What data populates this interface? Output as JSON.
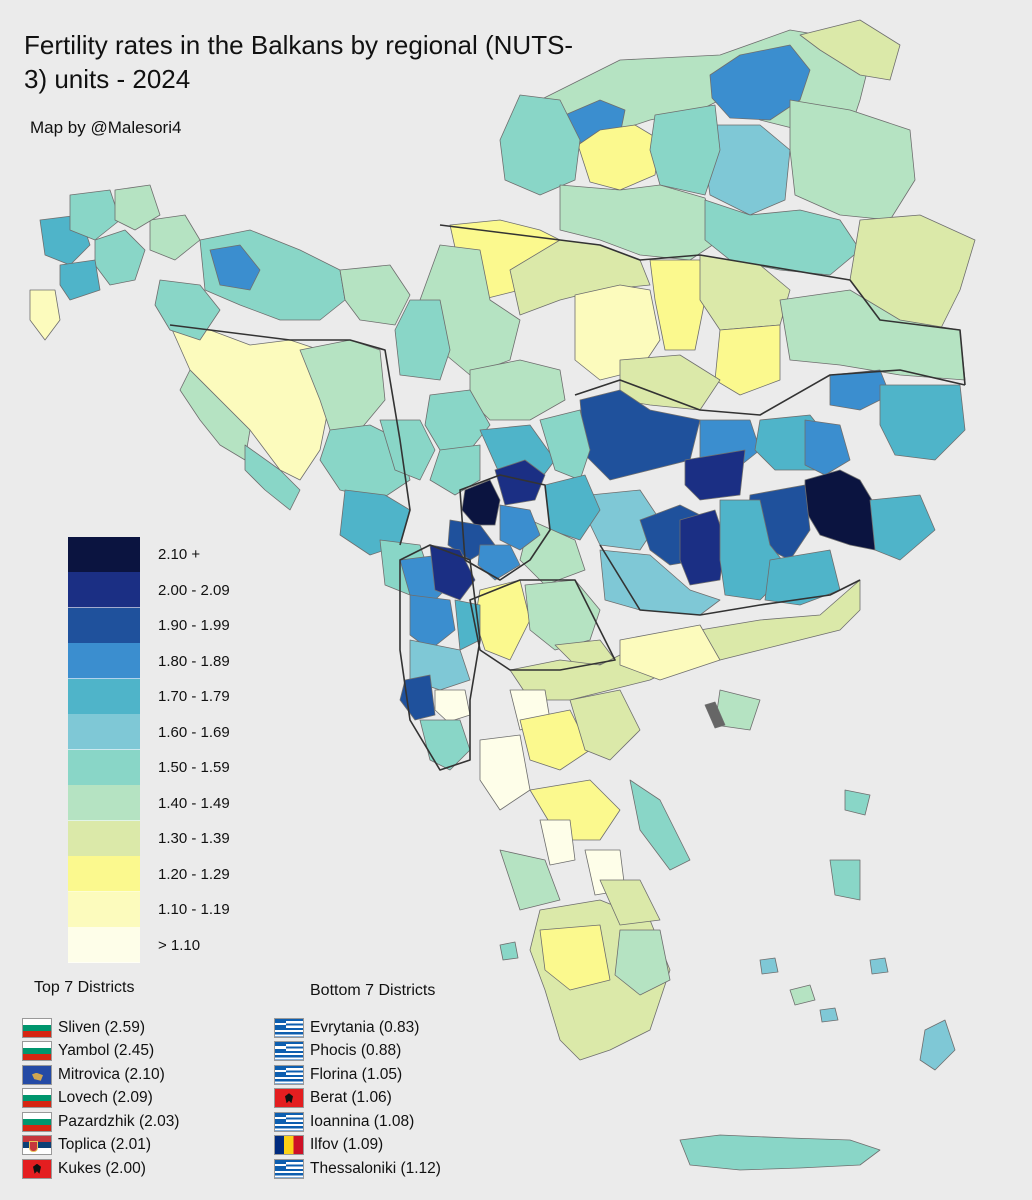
{
  "title": "Fertility rates in the Balkans  by regional (NUTS-3) units - 2024",
  "credit": "Map by @Malesori4",
  "legend": [
    {
      "label": "2.10 +",
      "color": "#0b1440"
    },
    {
      "label": "2.00 - 2.09",
      "color": "#1b2f84"
    },
    {
      "label": "1.90 - 1.99",
      "color": "#1f519c"
    },
    {
      "label": "1.80 - 1.89",
      "color": "#3b8ecf"
    },
    {
      "label": "1.70 - 1.79",
      "color": "#4fb4c9"
    },
    {
      "label": "1.60 - 1.69",
      "color": "#7fc8d6"
    },
    {
      "label": "1.50 - 1.59",
      "color": "#89d6c7"
    },
    {
      "label": "1.40 - 1.49",
      "color": "#b5e3c2"
    },
    {
      "label": "1.30 - 1.39",
      "color": "#dbe9a9"
    },
    {
      "label": "1.20 - 1.29",
      "color": "#fbf98e"
    },
    {
      "label": "1.10 - 1.19",
      "color": "#fcfbbd"
    },
    {
      "label": "> 1.10",
      "color": "#fefee9"
    }
  ],
  "top": {
    "heading": "Top 7 Districts",
    "items": [
      {
        "label": "Sliven (2.59)",
        "flag": "bg"
      },
      {
        "label": "Yambol (2.45)",
        "flag": "bg"
      },
      {
        "label": "Mitrovica (2.10)",
        "flag": "xk"
      },
      {
        "label": "Lovech (2.09)",
        "flag": "bg"
      },
      {
        "label": "Pazardzhik (2.03)",
        "flag": "bg"
      },
      {
        "label": "Toplica (2.01)",
        "flag": "rs"
      },
      {
        "label": "Kukes (2.00)",
        "flag": "al"
      }
    ]
  },
  "bottom": {
    "heading": "Bottom 7 Districts",
    "items": [
      {
        "label": "Evrytania (0.83)",
        "flag": "gr"
      },
      {
        "label": "Phocis (0.88)",
        "flag": "gr"
      },
      {
        "label": "Florina (1.05)",
        "flag": "gr"
      },
      {
        "label": "Berat (1.06)",
        "flag": "al"
      },
      {
        "label": "Ioannina (1.08)",
        "flag": "gr"
      },
      {
        "label": "Ilfov (1.09)",
        "flag": "ro"
      },
      {
        "label": "Thessaloniki (1.12)",
        "flag": "gr"
      }
    ]
  }
}
